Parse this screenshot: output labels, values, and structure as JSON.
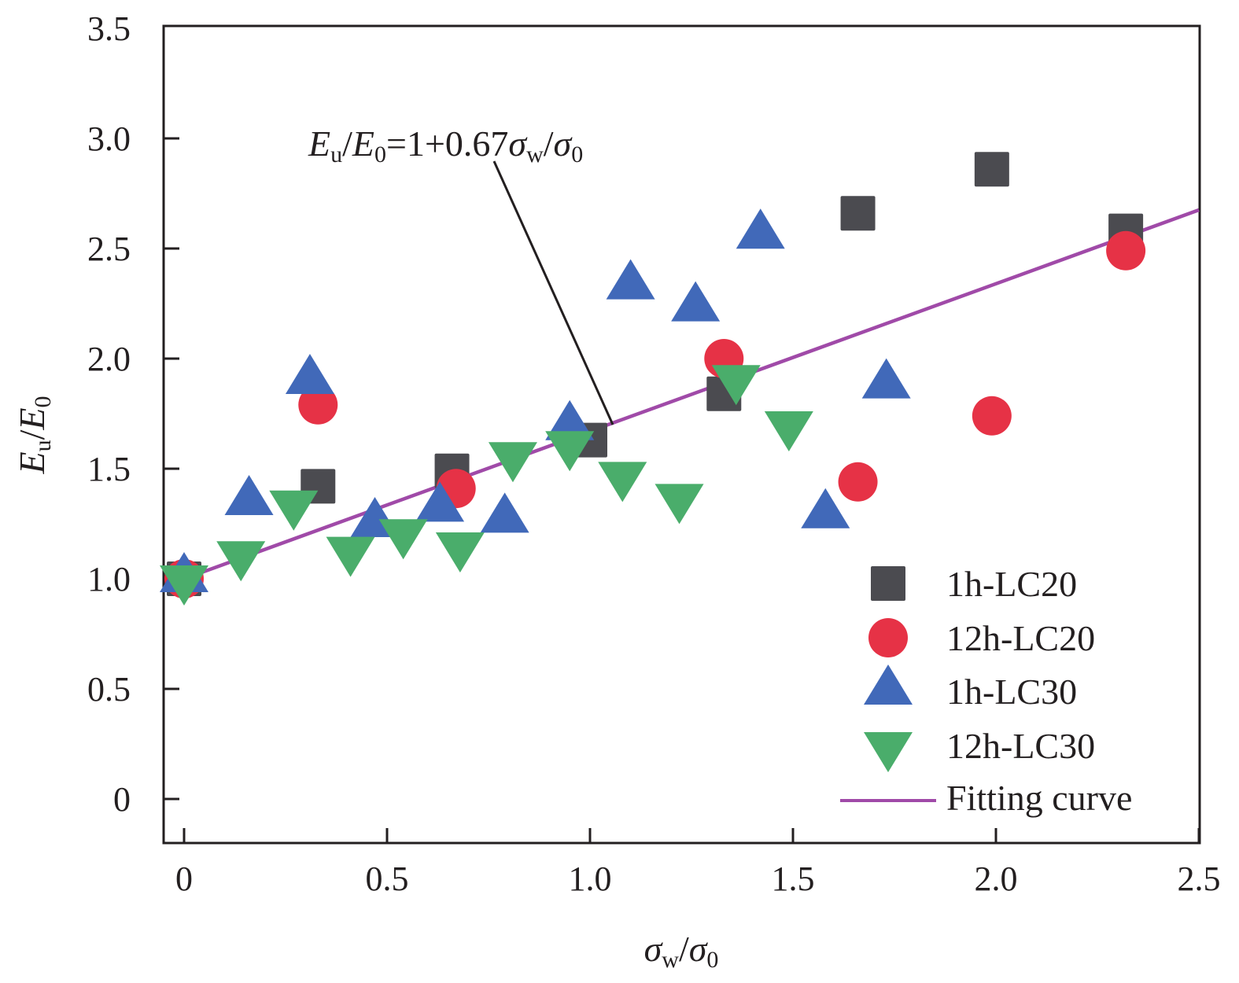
{
  "chart_data": {
    "type": "scatter",
    "title": "",
    "xlabel": "σw/σ0",
    "xlabel_parts": {
      "main": "σ",
      "sub1": "w",
      "sep": "/",
      "main2": "σ",
      "sub2": "0"
    },
    "ylabel": "Eu/E0",
    "ylabel_parts": {
      "main": "E",
      "sub1": "u",
      "sep": "/",
      "main2": "E",
      "sub2": "0"
    },
    "xlim": [
      -0.05,
      2.5
    ],
    "ylim": [
      -0.2,
      3.5
    ],
    "xticks": [
      0,
      0.5,
      1.0,
      1.5,
      2.0,
      2.5
    ],
    "xtick_labels": [
      "0",
      "0.5",
      "1.0",
      "1.5",
      "2.0",
      "2.5"
    ],
    "yticks": [
      0,
      0.5,
      1.0,
      1.5,
      2.0,
      2.5,
      3.0,
      3.5
    ],
    "ytick_labels": [
      "0",
      "0.5",
      "1.0",
      "1.5",
      "2.0",
      "2.5",
      "3.0",
      "3.5"
    ],
    "grid": false,
    "legend_position": "bottom-right",
    "series": [
      {
        "name": "1h-LC20",
        "marker": "square",
        "color": "#4b4b50",
        "points": [
          [
            0,
            1.0
          ],
          [
            0.33,
            1.42
          ],
          [
            0.66,
            1.49
          ],
          [
            1.0,
            1.63
          ],
          [
            1.33,
            1.84
          ],
          [
            1.66,
            2.66
          ],
          [
            1.99,
            2.86
          ],
          [
            2.32,
            2.58
          ]
        ]
      },
      {
        "name": "12h-LC20",
        "marker": "circle",
        "color": "#e63246",
        "points": [
          [
            0,
            1.0
          ],
          [
            0.33,
            1.79
          ],
          [
            0.67,
            1.41
          ],
          [
            1.33,
            2.0
          ],
          [
            1.66,
            1.44
          ],
          [
            1.99,
            1.74
          ],
          [
            2.32,
            2.49
          ]
        ]
      },
      {
        "name": "1h-LC30",
        "marker": "triangle-up",
        "color": "#4169b9",
        "points": [
          [
            0,
            1.0
          ],
          [
            0.16,
            1.35
          ],
          [
            0.31,
            1.9
          ],
          [
            0.47,
            1.25
          ],
          [
            0.63,
            1.32
          ],
          [
            0.79,
            1.27
          ],
          [
            0.95,
            1.69
          ],
          [
            1.1,
            2.33
          ],
          [
            1.26,
            2.23
          ],
          [
            1.42,
            2.56
          ],
          [
            1.58,
            1.29
          ],
          [
            1.73,
            1.88
          ]
        ]
      },
      {
        "name": "12h-LC30",
        "marker": "triangle-down",
        "color": "#4aad6b",
        "points": [
          [
            0,
            1.0
          ],
          [
            0.14,
            1.11
          ],
          [
            0.27,
            1.34
          ],
          [
            0.41,
            1.13
          ],
          [
            0.54,
            1.21
          ],
          [
            0.68,
            1.15
          ],
          [
            0.81,
            1.56
          ],
          [
            0.95,
            1.61
          ],
          [
            1.08,
            1.47
          ],
          [
            1.22,
            1.37
          ],
          [
            1.36,
            1.91
          ],
          [
            1.49,
            1.7
          ]
        ]
      }
    ],
    "fit": {
      "name": "Fitting curve",
      "type": "line",
      "color": "#a04aa8",
      "intercept": 1,
      "slope": 0.67,
      "x_range": [
        0,
        2.5
      ]
    },
    "annotation": {
      "text": "Eu/E0=1+0.67σw/σ0",
      "parts": {
        "E1": "E",
        "u": "u",
        "slash1": "/",
        "E2": "E",
        "zero1": "0",
        "rest": "=1+0.67",
        "s1": "σ",
        "w": "w",
        "slash2": "/",
        "s2": "σ",
        "zero2": "0"
      },
      "points_to": [
        1.06,
        1.69
      ]
    }
  }
}
